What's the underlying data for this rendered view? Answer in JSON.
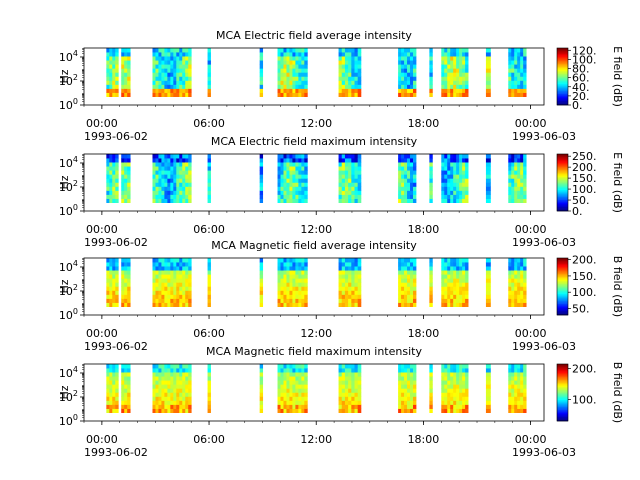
{
  "chart_data": [
    {
      "type": "heatmap",
      "title": "MCA  Electric field average intensity",
      "ylabel": "Hz",
      "x_ticks": [
        "00:00",
        "06:00",
        "12:00",
        "18:00",
        "00:00"
      ],
      "x_date_start": "1993-06-02",
      "x_date_end": "1993-06-03",
      "y_scale": "log",
      "y_ticks": [
        "10^0",
        "10^2",
        "10^4"
      ],
      "ylim": [
        1,
        56000
      ],
      "xlim": [
        "1993-06-01T23:00",
        "1993-06-03T00:45"
      ],
      "colorbar": {
        "label": "E field (dB)",
        "ticks": [
          "0.",
          "20.",
          "40.",
          "60.",
          "80.",
          "100.",
          "120."
        ],
        "range": [
          0,
          125
        ]
      },
      "style": "eavg"
    },
    {
      "type": "heatmap",
      "title": "MCA  Electric field maximum intensity",
      "ylabel": "Hz",
      "x_ticks": [
        "00:00",
        "06:00",
        "12:00",
        "18:00",
        "00:00"
      ],
      "x_date_start": "1993-06-02",
      "x_date_end": "1993-06-03",
      "y_scale": "log",
      "y_ticks": [
        "10^0",
        "10^2",
        "10^4"
      ],
      "ylim": [
        1,
        56000
      ],
      "xlim": [
        "1993-06-01T23:00",
        "1993-06-03T00:45"
      ],
      "colorbar": {
        "label": "E field (dB)",
        "ticks": [
          "0.",
          "50.",
          "100.",
          "150.",
          "200.",
          "250."
        ],
        "range": [
          0,
          260
        ]
      },
      "style": "emax"
    },
    {
      "type": "heatmap",
      "title": "MCA  Magnetic field average intensity",
      "ylabel": "Hz",
      "x_ticks": [
        "00:00",
        "06:00",
        "12:00",
        "18:00",
        "00:00"
      ],
      "x_date_start": "1993-06-02",
      "x_date_end": "1993-06-03",
      "y_scale": "log",
      "y_ticks": [
        "10^0",
        "10^2",
        "10^4"
      ],
      "ylim": [
        1,
        56000
      ],
      "xlim": [
        "1993-06-01T23:00",
        "1993-06-03T00:45"
      ],
      "colorbar": {
        "label": "B field (dB)",
        "ticks": [
          "50.",
          "100.",
          "150.",
          "200."
        ],
        "range": [
          30,
          205
        ]
      },
      "style": "bavg"
    },
    {
      "type": "heatmap",
      "title": "MCA  Magnetic field maximum intensity",
      "ylabel": "Hz",
      "x_ticks": [
        "00:00",
        "06:00",
        "12:00",
        "18:00",
        "00:00"
      ],
      "x_date_start": "1993-06-02",
      "x_date_end": "1993-06-03",
      "y_scale": "log",
      "y_ticks": [
        "10^0",
        "10^2",
        "10^4"
      ],
      "ylim": [
        1,
        56000
      ],
      "xlim": [
        "1993-06-01T23:00",
        "1993-06-03T00:45"
      ],
      "colorbar": {
        "label": "B field (dB)",
        "ticks": [
          "100.",
          "200."
        ],
        "range": [
          30,
          215
        ]
      },
      "style": "bmax"
    }
  ],
  "data_segments_utc": [
    [
      "1993-06-02T00:15",
      "1993-06-02T00:55"
    ],
    [
      "1993-06-02T01:05",
      "1993-06-02T01:35"
    ],
    [
      "1993-06-02T02:50",
      "1993-06-02T05:00"
    ],
    [
      "1993-06-02T05:55",
      "1993-06-02T06:05"
    ],
    [
      "1993-06-02T08:50",
      "1993-06-02T09:00"
    ],
    [
      "1993-06-02T09:50",
      "1993-06-02T11:30"
    ],
    [
      "1993-06-02T13:15",
      "1993-06-02T14:30"
    ],
    [
      "1993-06-02T16:35",
      "1993-06-02T17:35"
    ],
    [
      "1993-06-02T18:20",
      "1993-06-02T18:30"
    ],
    [
      "1993-06-02T19:00",
      "1993-06-02T20:30"
    ],
    [
      "1993-06-02T21:30",
      "1993-06-02T21:45"
    ],
    [
      "1993-06-02T22:45",
      "1993-06-02T23:45"
    ]
  ]
}
